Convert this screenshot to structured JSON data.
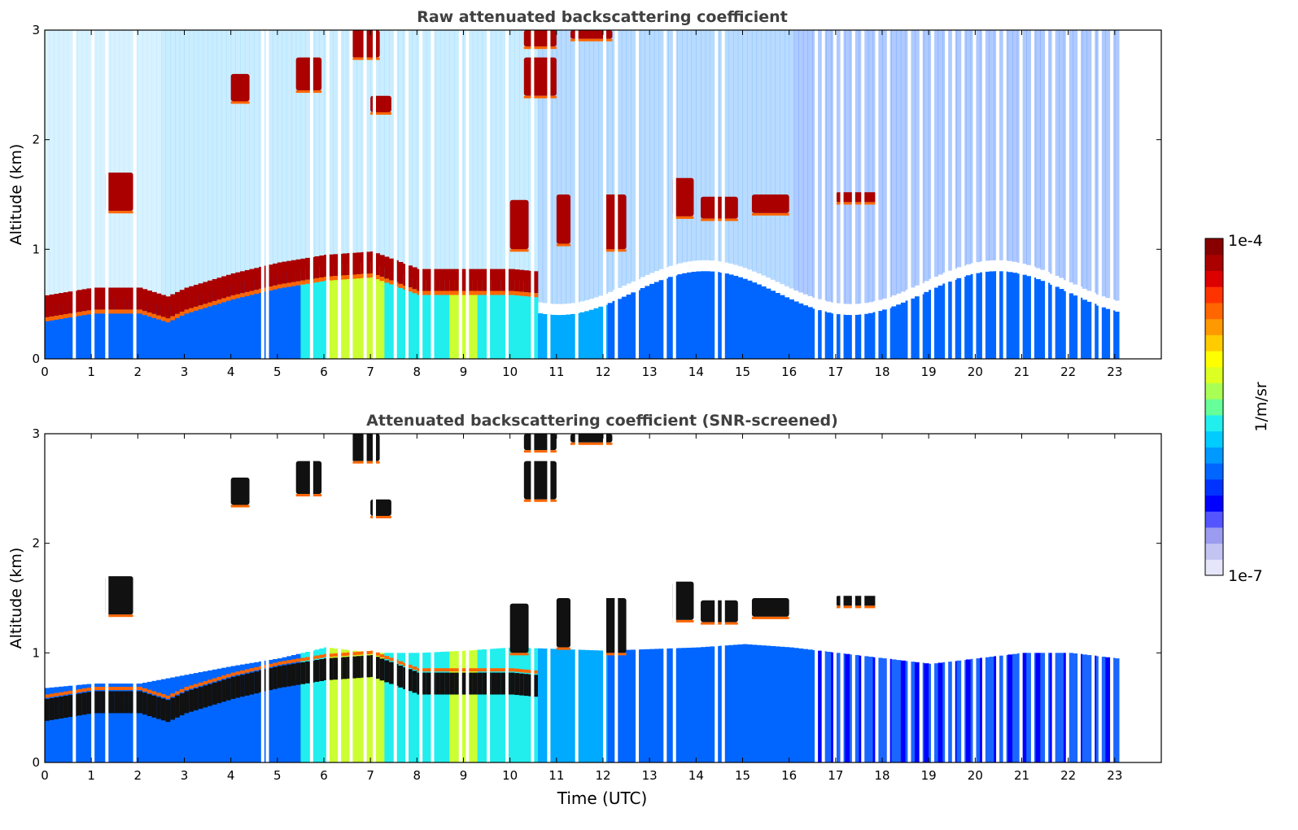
{
  "chart_data": [
    {
      "type": "heatmap",
      "title": "Raw attenuated backscattering coefficient",
      "xlabel": "",
      "ylabel": "Altitude (km)",
      "xlim": [
        0,
        24
      ],
      "ylim": [
        0,
        3
      ],
      "xticks": [
        "0",
        "1",
        "2",
        "3",
        "4",
        "5",
        "6",
        "7",
        "8",
        "9",
        "10",
        "11",
        "12",
        "13",
        "14",
        "15",
        "16",
        "17",
        "18",
        "19",
        "20",
        "21",
        "22",
        "23"
      ],
      "yticks": [
        "0",
        "1",
        "2",
        "3"
      ],
      "boundary_layer_top_km": [
        [
          0,
          0.48
        ],
        [
          1,
          0.55
        ],
        [
          2,
          0.55
        ],
        [
          2.6,
          0.47
        ],
        [
          3,
          0.55
        ],
        [
          4,
          0.68
        ],
        [
          5,
          0.78
        ],
        [
          6,
          0.85
        ],
        [
          7,
          0.88
        ],
        [
          8,
          0.72
        ],
        [
          9,
          0.72
        ],
        [
          10,
          0.72
        ],
        [
          10.5,
          0.7
        ]
      ],
      "cloud_patches": [
        {
          "t0": 1.3,
          "t1": 1.9,
          "z0": 1.35,
          "z1": 1.7
        },
        {
          "t0": 4.0,
          "t1": 4.4,
          "z0": 2.35,
          "z1": 2.6
        },
        {
          "t0": 5.4,
          "t1": 5.95,
          "z0": 2.45,
          "z1": 2.75
        },
        {
          "t0": 6.6,
          "t1": 7.2,
          "z0": 2.75,
          "z1": 3.0
        },
        {
          "t0": 7.0,
          "t1": 7.45,
          "z0": 2.25,
          "z1": 2.4
        },
        {
          "t0": 10.3,
          "t1": 11.0,
          "z0": 2.4,
          "z1": 2.75
        },
        {
          "t0": 10.3,
          "t1": 11.0,
          "z0": 2.85,
          "z1": 3.0
        },
        {
          "t0": 11.3,
          "t1": 12.2,
          "z0": 2.92,
          "z1": 3.0
        },
        {
          "t0": 13.5,
          "t1": 13.95,
          "z0": 1.3,
          "z1": 1.65
        },
        {
          "t0": 14.1,
          "t1": 14.9,
          "z0": 1.28,
          "z1": 1.48
        },
        {
          "t0": 15.2,
          "t1": 16.0,
          "z0": 1.33,
          "z1": 1.5
        },
        {
          "t0": 17.0,
          "t1": 17.9,
          "z0": 1.43,
          "z1": 1.52
        },
        {
          "t0": 10.0,
          "t1": 10.4,
          "z0": 1.0,
          "z1": 1.45
        },
        {
          "t0": 11.0,
          "t1": 11.3,
          "z0": 1.05,
          "z1": 1.5
        },
        {
          "t0": 12.0,
          "t1": 12.5,
          "z0": 1.0,
          "z1": 1.5
        }
      ],
      "data_gaps_utc": [
        0.6,
        1.0,
        1.3,
        1.9,
        4.65,
        4.75,
        5.7,
        6.05,
        6.3,
        6.55,
        6.85,
        7.05,
        7.5,
        7.75,
        8.05,
        8.3,
        8.9,
        9.05,
        9.5,
        9.9,
        10.45,
        10.8,
        11.4,
        12.0,
        12.25,
        12.7,
        13.3,
        13.5,
        14.4,
        14.55,
        16.55,
        16.7,
        16.95,
        17.1,
        17.35,
        17.55,
        17.85,
        18.1,
        18.55,
        18.8,
        19.05,
        19.35,
        19.5,
        19.7,
        19.95,
        20.15,
        20.45,
        20.6,
        20.95,
        21.2,
        21.5,
        21.65,
        21.95,
        22.2,
        22.5,
        22.65,
        22.9
      ]
    },
    {
      "type": "heatmap",
      "title": "Attenuated backscattering coefficient (SNR-screened)",
      "xlabel": "Time (UTC)",
      "ylabel": "Altitude (km)",
      "xlim": [
        0,
        24
      ],
      "ylim": [
        0,
        3
      ],
      "xticks": [
        "0",
        "1",
        "2",
        "3",
        "4",
        "5",
        "6",
        "7",
        "8",
        "9",
        "10",
        "11",
        "12",
        "13",
        "14",
        "15",
        "16",
        "17",
        "18",
        "19",
        "20",
        "21",
        "22",
        "23"
      ],
      "yticks": [
        "0",
        "1",
        "2",
        "3"
      ],
      "signal_top_km": [
        [
          0,
          0.68
        ],
        [
          1,
          0.72
        ],
        [
          2,
          0.72
        ],
        [
          3,
          0.8
        ],
        [
          4,
          0.88
        ],
        [
          5,
          0.95
        ],
        [
          6,
          1.05
        ],
        [
          7,
          1.0
        ],
        [
          8,
          1.0
        ],
        [
          9,
          1.02
        ],
        [
          10,
          1.05
        ],
        [
          12,
          1.02
        ],
        [
          14,
          1.05
        ],
        [
          15,
          1.08
        ],
        [
          16,
          1.05
        ],
        [
          17,
          1.0
        ],
        [
          18,
          0.95
        ],
        [
          19,
          0.9
        ],
        [
          20,
          0.95
        ],
        [
          21,
          1.0
        ],
        [
          22,
          1.0
        ],
        [
          23,
          0.95
        ]
      ]
    }
  ],
  "colorbar": {
    "label": "1/m/sr",
    "max_label": "1e-4",
    "min_label": "1e-7",
    "colors": [
      "#e6e6fa",
      "#c4c4f2",
      "#9b9bf0",
      "#5555ff",
      "#0000ff",
      "#0033ff",
      "#0066ff",
      "#0099ff",
      "#00ccff",
      "#22eeee",
      "#66ff99",
      "#aaff55",
      "#ddff22",
      "#ffff00",
      "#ffcc00",
      "#ff9900",
      "#ff6600",
      "#ff3300",
      "#dd0000",
      "#aa0000",
      "#880000"
    ]
  }
}
